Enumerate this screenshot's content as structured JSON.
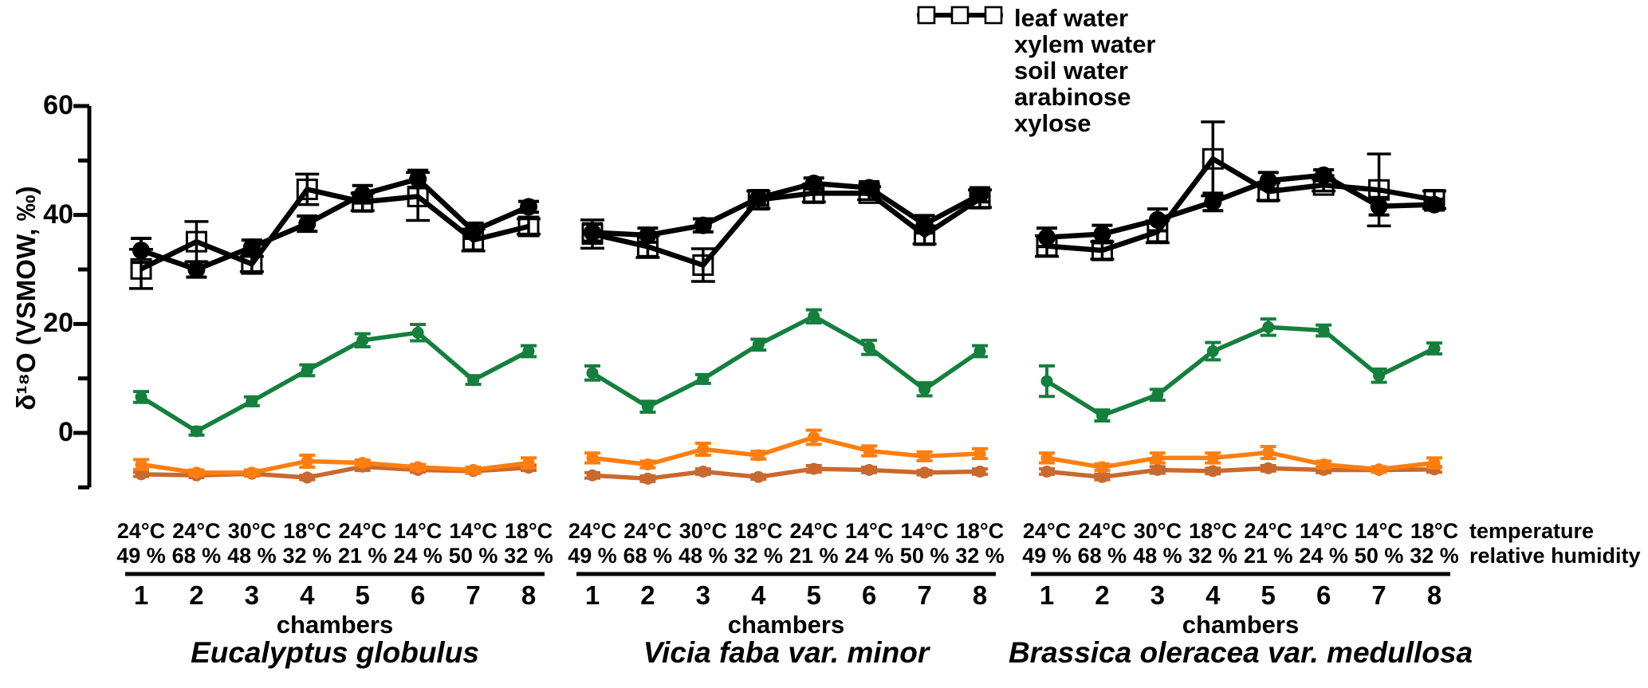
{
  "figure": {
    "y_axis_label": "δ¹⁸O (VSMOW, ‰)",
    "temperature_row_label": "temperature",
    "humidity_row_label": "relative humidity",
    "chambers_axis_label": "chambers",
    "legend": [
      {
        "label": "leaf water",
        "color": "#157f3d",
        "marker": "dot"
      },
      {
        "label": "xylem water",
        "color": "#ff7e0f",
        "marker": "dot"
      },
      {
        "label": "soil water",
        "color": "#c8692f",
        "marker": "dot"
      },
      {
        "label": "arabinose",
        "color": "#000000",
        "marker": "circle"
      },
      {
        "label": "xylose",
        "color": "#000000",
        "marker": "square-open"
      }
    ]
  },
  "chart_data": {
    "type": "line",
    "ylabel": "δ¹⁸O (VSMOW, ‰)",
    "ylim": [
      -10,
      60
    ],
    "y_ticks_labeled": [
      0,
      20,
      40,
      60
    ],
    "y_ticks_minor": [
      -10,
      10,
      30,
      50
    ],
    "grid": false,
    "legend_position": "top-center",
    "x_categories": [
      "1",
      "2",
      "3",
      "4",
      "5",
      "6",
      "7",
      "8"
    ],
    "xlabel": "chambers",
    "temperatures": [
      "24°C",
      "24°C",
      "30°C",
      "18°C",
      "24°C",
      "14°C",
      "14°C",
      "18°C"
    ],
    "relative_humidity": [
      "49 %",
      "68 %",
      "48 %",
      "32 %",
      "21 %",
      "24 %",
      "50 %",
      "32 %"
    ],
    "panels": [
      {
        "species": "Eucalyptus globulus",
        "series": [
          {
            "name": "leaf water",
            "color": "#157f3d",
            "marker": "dot",
            "values": [
              6.6,
              0.3,
              5.8,
              11.5,
              17.0,
              18.4,
              9.7,
              15.0
            ],
            "errors": [
              1.0,
              0.7,
              0.8,
              1.0,
              1.2,
              1.5,
              0.8,
              1.0
            ]
          },
          {
            "name": "xylem water",
            "color": "#ff7e0f",
            "marker": "dot",
            "values": [
              -5.8,
              -7.3,
              -7.3,
              -5.2,
              -5.5,
              -6.3,
              -6.8,
              -5.5
            ],
            "errors": [
              0.9,
              0.5,
              0.5,
              1.1,
              0.5,
              0.5,
              0.5,
              0.9
            ]
          },
          {
            "name": "soil water",
            "color": "#c8692f",
            "marker": "dot",
            "values": [
              -7.6,
              -7.8,
              -7.5,
              -8.2,
              -6.2,
              -6.8,
              -7.0,
              -6.4
            ],
            "errors": [
              0.4,
              0.4,
              0.4,
              0.4,
              0.7,
              0.4,
              0.4,
              0.5
            ]
          },
          {
            "name": "arabinose",
            "color": "#000000",
            "marker": "circle",
            "values": [
              33.5,
              30.0,
              34.1,
              38.4,
              43.8,
              46.6,
              37.1,
              41.5
            ],
            "errors": [
              2.2,
              1.4,
              1.3,
              1.4,
              1.6,
              1.6,
              1.4,
              1.0
            ]
          },
          {
            "name": "xylose",
            "color": "#000000",
            "marker": "square-open",
            "values": [
              30.1,
              35.1,
              31.0,
              44.7,
              42.4,
              43.4,
              35.4,
              37.9
            ],
            "errors": [
              3.6,
              3.7,
              1.4,
              2.8,
              1.6,
              4.4,
              2.0,
              1.4
            ]
          }
        ]
      },
      {
        "species": "Vicia faba var. minor",
        "series": [
          {
            "name": "leaf water",
            "color": "#157f3d",
            "marker": "dot",
            "values": [
              11.0,
              4.8,
              9.9,
              16.2,
              21.4,
              15.7,
              8.0,
              15.0
            ],
            "errors": [
              1.3,
              1.0,
              0.8,
              1.0,
              1.2,
              1.3,
              1.2,
              1.0
            ]
          },
          {
            "name": "xylem water",
            "color": "#ff7e0f",
            "marker": "dot",
            "values": [
              -4.6,
              -5.8,
              -3.0,
              -4.1,
              -0.8,
              -3.3,
              -4.3,
              -3.8
            ],
            "errors": [
              0.9,
              0.6,
              1.1,
              0.7,
              1.3,
              0.9,
              0.8,
              0.9
            ]
          },
          {
            "name": "soil water",
            "color": "#c8692f",
            "marker": "dot",
            "values": [
              -7.8,
              -8.4,
              -7.1,
              -8.1,
              -6.6,
              -6.8,
              -7.3,
              -7.1
            ],
            "errors": [
              0.5,
              0.5,
              0.5,
              0.4,
              0.6,
              0.5,
              0.4,
              0.5
            ]
          },
          {
            "name": "arabinose",
            "color": "#000000",
            "marker": "circle",
            "values": [
              36.8,
              36.3,
              38.1,
              43.1,
              45.8,
              45.0,
              38.3,
              43.7
            ],
            "errors": [
              1.6,
              1.3,
              1.2,
              1.3,
              1.0,
              1.1,
              1.6,
              1.3
            ]
          },
          {
            "name": "xylose",
            "color": "#000000",
            "marker": "square-open",
            "values": [
              36.5,
              34.2,
              30.8,
              42.8,
              44.0,
              44.0,
              36.3,
              43.0
            ],
            "errors": [
              2.6,
              2.0,
              3.0,
              1.6,
              1.6,
              1.2,
              1.6,
              1.6
            ]
          }
        ]
      },
      {
        "species": "Brassica oleracea var. medullosa",
        "series": [
          {
            "name": "leaf water",
            "color": "#157f3d",
            "marker": "dot",
            "values": [
              9.5,
              3.2,
              7.0,
              15.0,
              19.4,
              18.8,
              10.5,
              15.5
            ],
            "errors": [
              2.8,
              1.0,
              1.0,
              1.6,
              1.5,
              1.0,
              1.2,
              1.0
            ]
          },
          {
            "name": "xylem water",
            "color": "#ff7e0f",
            "marker": "dot",
            "values": [
              -4.6,
              -6.3,
              -4.6,
              -4.6,
              -3.6,
              -5.8,
              -6.7,
              -5.5
            ],
            "errors": [
              0.9,
              0.6,
              0.9,
              0.9,
              1.1,
              0.6,
              0.5,
              0.9
            ]
          },
          {
            "name": "soil water",
            "color": "#c8692f",
            "marker": "dot",
            "values": [
              -7.1,
              -8.1,
              -6.8,
              -7.0,
              -6.5,
              -6.8,
              -6.8,
              -6.7
            ],
            "errors": [
              0.5,
              0.5,
              0.6,
              0.5,
              0.5,
              0.5,
              0.4,
              0.5
            ]
          },
          {
            "name": "arabinose",
            "color": "#000000",
            "marker": "circle",
            "values": [
              35.9,
              36.5,
              39.1,
              42.4,
              46.3,
              47.3,
              41.6,
              41.9
            ],
            "errors": [
              1.7,
              1.6,
              2.0,
              1.6,
              1.5,
              1.0,
              1.6,
              1.0
            ]
          },
          {
            "name": "xylose",
            "color": "#000000",
            "marker": "square-open",
            "values": [
              34.3,
              33.5,
              36.9,
              50.3,
              44.3,
              45.5,
              44.6,
              42.8
            ],
            "errors": [
              1.9,
              1.6,
              2.0,
              6.8,
              1.6,
              1.1,
              6.6,
              1.6
            ]
          }
        ]
      }
    ]
  }
}
